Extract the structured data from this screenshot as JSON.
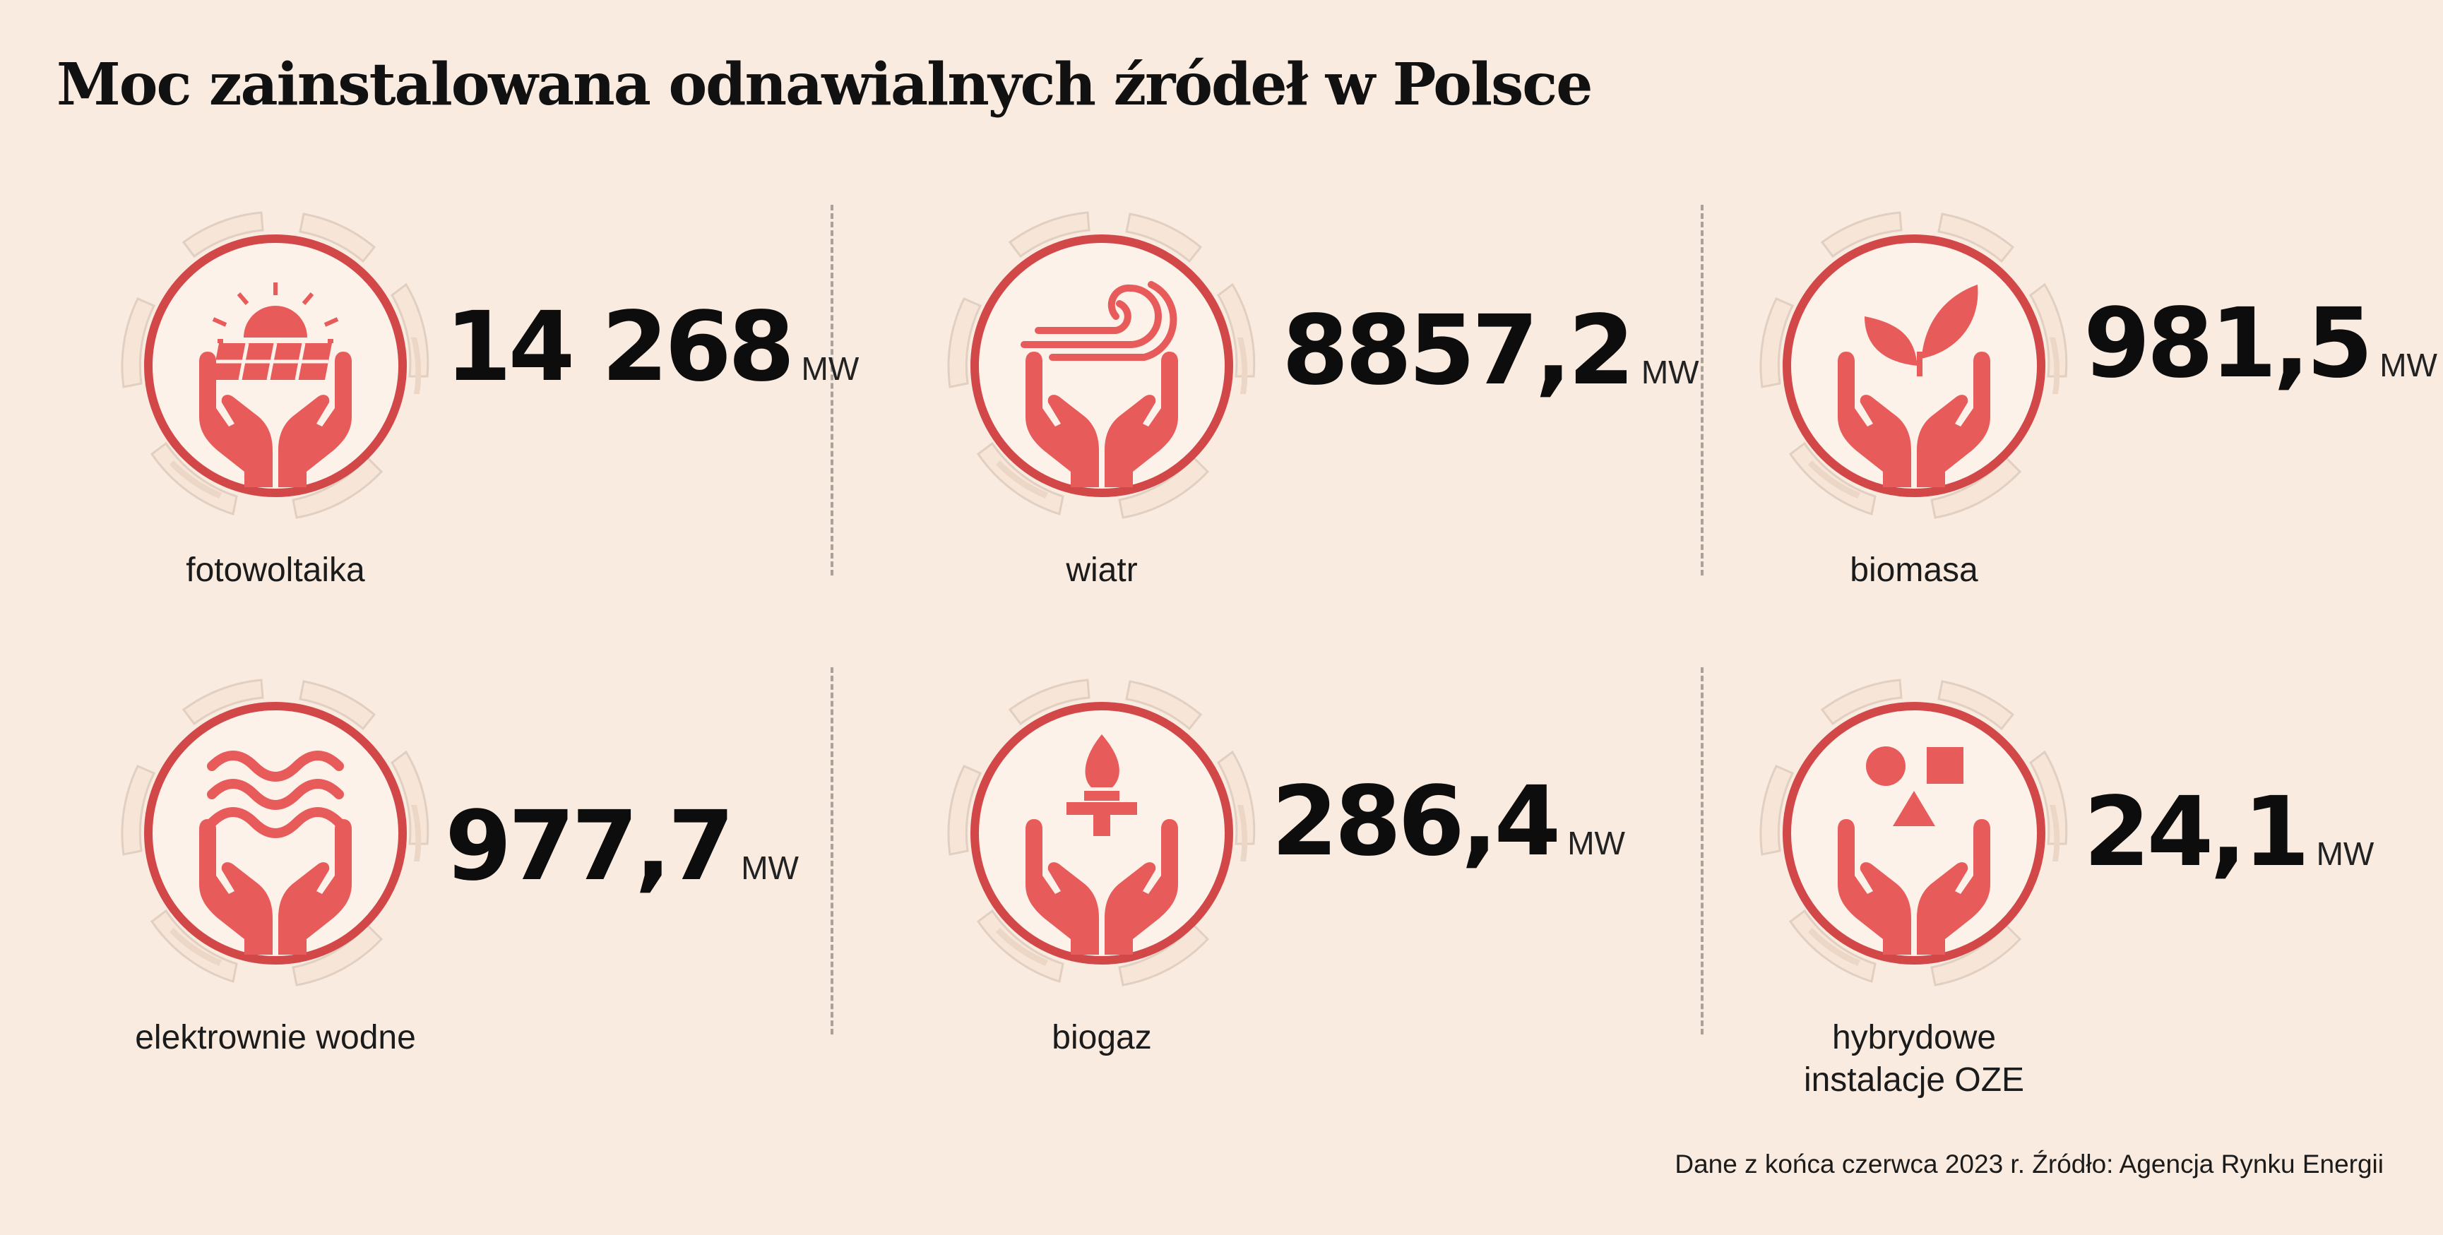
{
  "title": "Moc zainstalowana odnawialnych źródeł w Polsce",
  "colors": {
    "background": "#f9ebdf",
    "accent": "#e85b5b",
    "ring": "#d24848",
    "badge_bg": "#fdf2ea"
  },
  "items": [
    {
      "label": "fotowoltaika",
      "value": "14 268",
      "unit": "MW",
      "icon": "solar-panel-icon"
    },
    {
      "label": "wiatr",
      "value": "8857,2",
      "unit": "MW",
      "icon": "wind-icon"
    },
    {
      "label": "biomasa",
      "value": "981,5",
      "unit": "MW",
      "icon": "leaf-icon"
    },
    {
      "label": "elektrownie wodne",
      "value": "977,7",
      "unit": "MW",
      "icon": "water-waves-icon"
    },
    {
      "label": "biogaz",
      "value": "286,4",
      "unit": "MW",
      "icon": "gas-flame-icon"
    },
    {
      "label_line1": "hybrydowe",
      "label_line2": "instalacje OZE",
      "value": "24,1",
      "unit": "MW",
      "icon": "shapes-icon"
    }
  ],
  "footnote": "Dane z końca czerwca 2023 r. Źródło: Agencja Rynku Energii"
}
